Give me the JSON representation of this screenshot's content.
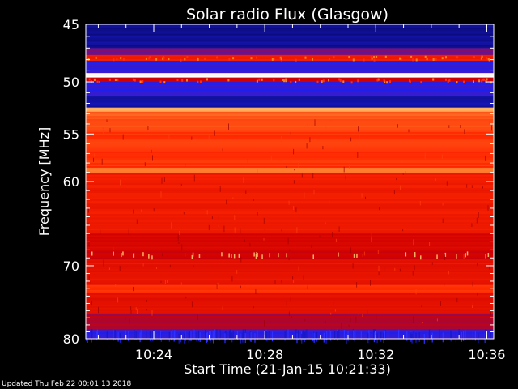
{
  "chart_data": {
    "type": "heatmap",
    "title": "Solar radio Flux (Glasgow)",
    "xlabel": "Start Time (21-Jan-15 10:21:33)",
    "ylabel": "Frequency [MHz]",
    "x_range": [
      "10:21:33",
      "10:36:15"
    ],
    "x_ticks": [
      "10:24",
      "10:28",
      "10:32",
      "10:36"
    ],
    "y_range_mhz": [
      45,
      80
    ],
    "y_ticks": [
      45,
      50,
      55,
      60,
      70,
      80
    ],
    "y_scale": "log",
    "colormap": [
      "#00003c",
      "#2020f0",
      "#d00000",
      "#ff2800",
      "#ffa040",
      "#ffffff"
    ],
    "bands": [
      {
        "from": 45.0,
        "to": 47.0,
        "level": 0.1
      },
      {
        "from": 47.0,
        "to": 47.6,
        "level": 0.3
      },
      {
        "from": 47.6,
        "to": 48.1,
        "level": 0.55
      },
      {
        "from": 48.1,
        "to": 49.2,
        "level": 0.22
      },
      {
        "from": 49.2,
        "to": 49.6,
        "level": 1.0
      },
      {
        "from": 49.6,
        "to": 50.0,
        "level": 0.4
      },
      {
        "from": 50.0,
        "to": 51.3,
        "level": 0.22
      },
      {
        "from": 51.3,
        "to": 52.4,
        "level": 0.12
      },
      {
        "from": 52.4,
        "to": 52.8,
        "level": 0.85
      },
      {
        "from": 52.8,
        "to": 53.2,
        "level": 0.7
      },
      {
        "from": 53.2,
        "to": 54.8,
        "level": 0.66
      },
      {
        "from": 54.8,
        "to": 58.5,
        "level": 0.62
      },
      {
        "from": 58.5,
        "to": 59.1,
        "level": 0.74
      },
      {
        "from": 59.1,
        "to": 66.0,
        "level": 0.54
      },
      {
        "from": 66.0,
        "to": 68.0,
        "level": 0.44
      },
      {
        "from": 68.0,
        "to": 69.2,
        "level": 0.4
      },
      {
        "from": 69.2,
        "to": 72.5,
        "level": 0.5
      },
      {
        "from": 72.5,
        "to": 73.6,
        "level": 0.6
      },
      {
        "from": 73.6,
        "to": 76.5,
        "level": 0.47
      },
      {
        "from": 76.5,
        "to": 78.6,
        "level": 0.36
      },
      {
        "from": 78.6,
        "to": 80.0,
        "level": 0.22
      }
    ],
    "grid": false,
    "legend": "none"
  },
  "footer": "Updated Thu Feb 22 00:01:13 2018"
}
